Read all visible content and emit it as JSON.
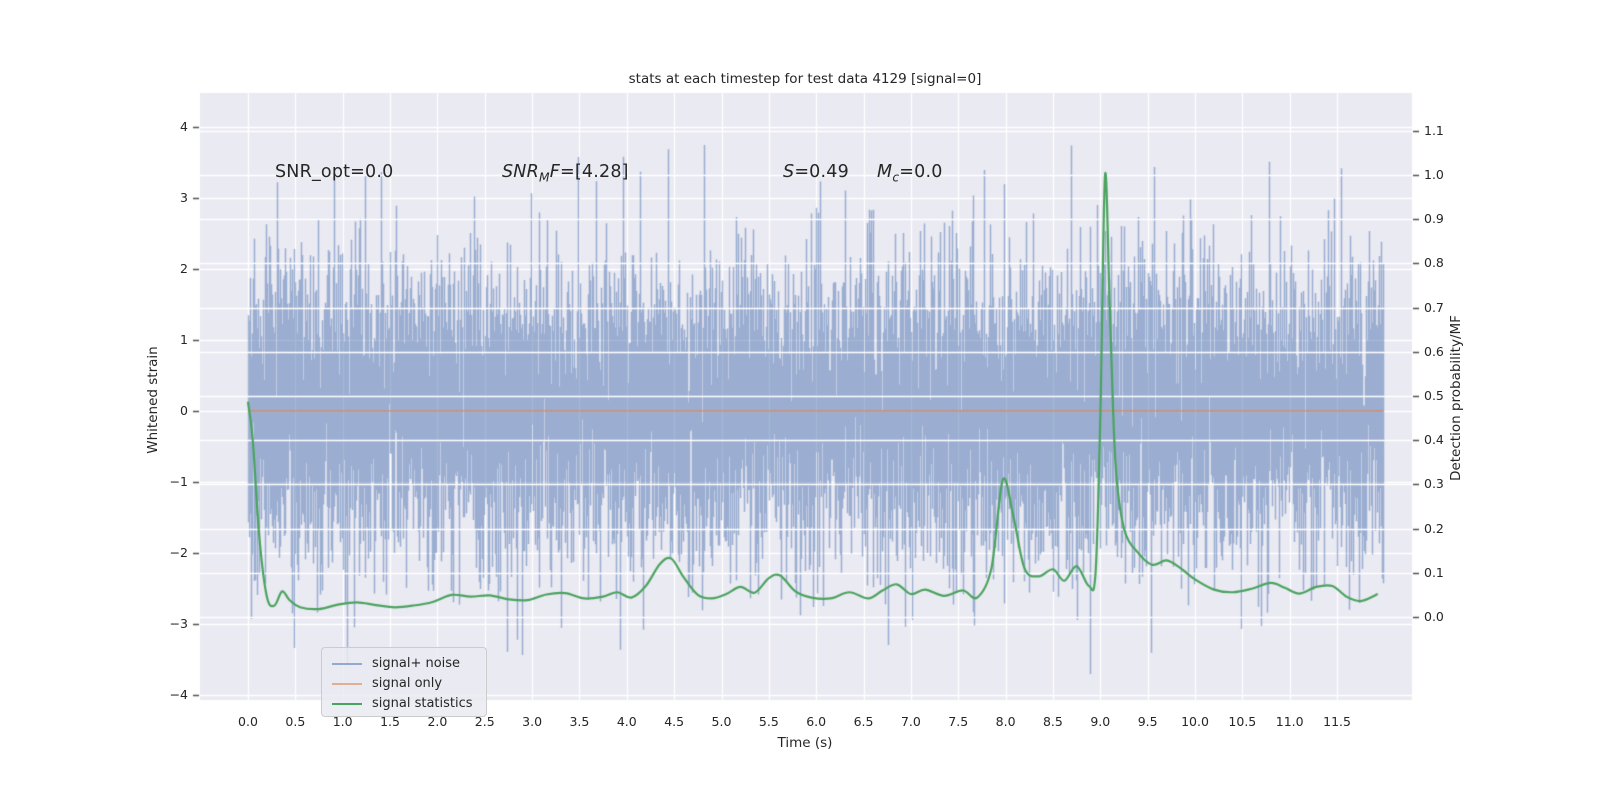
{
  "figure": {
    "title": "stats at each timestep for test data 4129 [signal=0]",
    "background_color": "#ffffff",
    "plot_background_color": "#eaeaf2",
    "grid_color": "#ffffff",
    "text_color": "#262626"
  },
  "axes": {
    "x": {
      "label": "Time (s)",
      "tick_labels": [
        "0.0",
        "0.5",
        "1.0",
        "1.5",
        "2.0",
        "2.5",
        "3.0",
        "3.5",
        "4.0",
        "4.5",
        "5.0",
        "5.5",
        "6.0",
        "6.5",
        "7.0",
        "7.5",
        "8.0",
        "8.5",
        "9.0",
        "9.5",
        "10.0",
        "10.5",
        "11.0",
        "11.5"
      ],
      "tick_values": [
        0,
        0.5,
        1,
        1.5,
        2,
        2.5,
        3,
        3.5,
        4,
        4.5,
        5,
        5.5,
        6,
        6.5,
        7,
        7.5,
        8,
        8.5,
        9,
        9.5,
        10,
        10.5,
        11,
        11.5
      ],
      "lim": [
        -0.51,
        12.29
      ]
    },
    "y_left": {
      "label": "Whitened strain",
      "tick_labels": [
        "4",
        "3",
        "2",
        "1",
        "0",
        "−1",
        "−2",
        "−3",
        "−4"
      ],
      "tick_values": [
        4,
        3,
        2,
        1,
        0,
        -1,
        -2,
        -3,
        -4
      ],
      "lim": [
        -4.07,
        4.48
      ]
    },
    "y_right": {
      "label": "Detection probability/MF",
      "tick_labels": [
        "1.1",
        "1.0",
        "0.9",
        "0.8",
        "0.7",
        "0.6",
        "0.5",
        "0.4",
        "0.3",
        "0.2",
        "0.1",
        "0.0"
      ],
      "tick_values": [
        1.1,
        1.0,
        0.9,
        0.8,
        0.7,
        0.6,
        0.5,
        0.4,
        0.3,
        0.2,
        0.1,
        0.0
      ],
      "lim": [
        -0.19,
        1.19
      ]
    }
  },
  "annotations": [
    {
      "it1": "",
      "sub": "",
      "it2": "",
      "rest": "SNR_opt=0.0"
    },
    {
      "it1": "SNR",
      "sub": "M",
      "it2": "F",
      "rest": "=[4.28]"
    },
    {
      "it1": "S",
      "sub": "",
      "it2": "",
      "rest": "=0.49"
    },
    {
      "it1": "M",
      "sub": "c",
      "it2": "",
      "rest": "=0.0"
    }
  ],
  "legend": {
    "items": [
      {
        "label": "signal+ noise",
        "color_css": "rgba(76,114,176,0.55)"
      },
      {
        "label": "signal only",
        "color_css": "rgba(221,132,82,0.6)"
      },
      {
        "label": "signal statistics",
        "color_css": "#4ba35f"
      }
    ]
  },
  "chart_data": {
    "type": "line",
    "title": "stats at each timestep for test data 4129 [signal=0]",
    "xlabel": "Time (s)",
    "ylabel_left": "Whitened strain",
    "ylabel_right": "Detection probability/MF",
    "x_range_s": [
      0,
      11.99
    ],
    "grid": true,
    "legend_position": "lower left",
    "series": [
      {
        "name": "signal+ noise",
        "axis": "left",
        "type": "noise_band",
        "color": "#4c72b0",
        "alpha": 0.5,
        "sigma": 1.05,
        "samples_per_column": 8,
        "seed": 20,
        "t_start": 0.0,
        "t_end": 11.99,
        "dense_core_band": [
          -1.45,
          1.45
        ],
        "observed_extremes": {
          "max": 4.1,
          "min": -3.65
        }
      },
      {
        "name": "signal only",
        "axis": "left",
        "type": "constant_line",
        "value": 0.0,
        "color": "#dd8452",
        "alpha": 0.6,
        "t_start": 0.0,
        "t_end": 11.99
      },
      {
        "name": "signal statistics",
        "axis": "right",
        "type": "line",
        "color": "#4ba35f",
        "points": [
          [
            0.0,
            0.487
          ],
          [
            0.05,
            0.4
          ],
          [
            0.12,
            0.18
          ],
          [
            0.2,
            0.045
          ],
          [
            0.28,
            0.026
          ],
          [
            0.36,
            0.058
          ],
          [
            0.44,
            0.038
          ],
          [
            0.55,
            0.022
          ],
          [
            0.75,
            0.018
          ],
          [
            0.95,
            0.028
          ],
          [
            1.15,
            0.033
          ],
          [
            1.35,
            0.027
          ],
          [
            1.55,
            0.022
          ],
          [
            1.75,
            0.026
          ],
          [
            1.95,
            0.034
          ],
          [
            2.15,
            0.05
          ],
          [
            2.35,
            0.046
          ],
          [
            2.55,
            0.049
          ],
          [
            2.75,
            0.04
          ],
          [
            2.95,
            0.038
          ],
          [
            3.15,
            0.051
          ],
          [
            3.35,
            0.054
          ],
          [
            3.55,
            0.042
          ],
          [
            3.75,
            0.046
          ],
          [
            3.9,
            0.056
          ],
          [
            4.05,
            0.044
          ],
          [
            4.2,
            0.07
          ],
          [
            4.35,
            0.12
          ],
          [
            4.47,
            0.132
          ],
          [
            4.6,
            0.09
          ],
          [
            4.75,
            0.05
          ],
          [
            4.9,
            0.042
          ],
          [
            5.05,
            0.052
          ],
          [
            5.2,
            0.068
          ],
          [
            5.35,
            0.055
          ],
          [
            5.5,
            0.088
          ],
          [
            5.62,
            0.094
          ],
          [
            5.78,
            0.058
          ],
          [
            5.95,
            0.044
          ],
          [
            6.15,
            0.042
          ],
          [
            6.35,
            0.056
          ],
          [
            6.55,
            0.042
          ],
          [
            6.7,
            0.06
          ],
          [
            6.85,
            0.074
          ],
          [
            7.0,
            0.052
          ],
          [
            7.15,
            0.062
          ],
          [
            7.35,
            0.048
          ],
          [
            7.55,
            0.06
          ],
          [
            7.7,
            0.044
          ],
          [
            7.85,
            0.11
          ],
          [
            7.97,
            0.31
          ],
          [
            8.08,
            0.23
          ],
          [
            8.2,
            0.11
          ],
          [
            8.35,
            0.092
          ],
          [
            8.5,
            0.108
          ],
          [
            8.62,
            0.082
          ],
          [
            8.75,
            0.115
          ],
          [
            8.88,
            0.07
          ],
          [
            8.95,
            0.1
          ],
          [
            9.0,
            0.45
          ],
          [
            9.05,
            1.0
          ],
          [
            9.1,
            0.7
          ],
          [
            9.16,
            0.35
          ],
          [
            9.25,
            0.2
          ],
          [
            9.4,
            0.145
          ],
          [
            9.55,
            0.118
          ],
          [
            9.7,
            0.128
          ],
          [
            9.85,
            0.11
          ],
          [
            10.0,
            0.085
          ],
          [
            10.2,
            0.062
          ],
          [
            10.4,
            0.056
          ],
          [
            10.6,
            0.064
          ],
          [
            10.8,
            0.077
          ],
          [
            10.95,
            0.066
          ],
          [
            11.1,
            0.053
          ],
          [
            11.28,
            0.068
          ],
          [
            11.45,
            0.07
          ],
          [
            11.6,
            0.046
          ],
          [
            11.75,
            0.036
          ],
          [
            11.93,
            0.052
          ]
        ]
      }
    ]
  }
}
